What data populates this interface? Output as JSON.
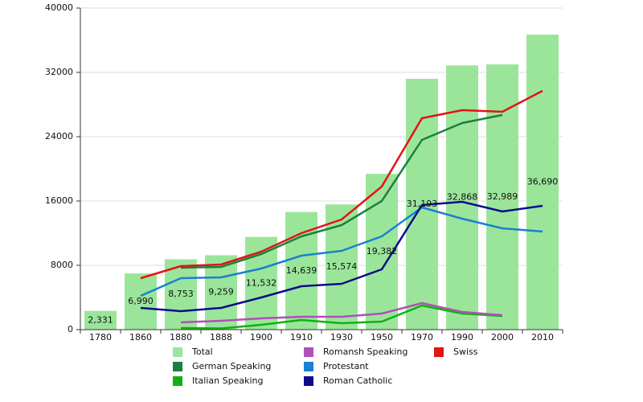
{
  "chart_data": {
    "type": "combo",
    "categories": [
      "1780",
      "1860",
      "1880",
      "1888",
      "1900",
      "1910",
      "1930",
      "1950",
      "1970",
      "1990",
      "2000",
      "2010"
    ],
    "ylim": [
      0,
      40000
    ],
    "yticks": [
      0,
      8000,
      16000,
      24000,
      32000,
      40000
    ],
    "grid": true,
    "legend": "bottom",
    "series": [
      {
        "name": "Total",
        "type": "bar",
        "color": "#9be59b",
        "values": [
          2331,
          6990,
          8753,
          9259,
          11532,
          14639,
          15574,
          19382,
          31193,
          32868,
          32989,
          36690
        ],
        "value_labels": [
          "2,331",
          "6,990",
          "8,753",
          "9,259",
          "11,532",
          "14,639",
          "15,574",
          "19,382",
          "31,193",
          "32,868",
          "32,989",
          "36,690"
        ]
      },
      {
        "name": "German Speaking",
        "type": "line",
        "color": "#1a8040",
        "values": [
          null,
          null,
          7700,
          7800,
          9400,
          11600,
          13000,
          16000,
          23600,
          25700,
          26700,
          null
        ]
      },
      {
        "name": "Italian Speaking",
        "type": "line",
        "color": "#12b012",
        "values": [
          null,
          null,
          200,
          150,
          600,
          1200,
          800,
          1000,
          3000,
          2000,
          1700,
          null
        ]
      },
      {
        "name": "Romansh Speaking",
        "type": "line",
        "color": "#b050b8",
        "values": [
          null,
          null,
          900,
          1100,
          1400,
          1600,
          1600,
          2000,
          3300,
          2200,
          1800,
          null
        ]
      },
      {
        "name": "Protestant",
        "type": "line",
        "color": "#1a80d0",
        "values": [
          null,
          4200,
          6400,
          6500,
          7600,
          9200,
          9800,
          11600,
          15200,
          13800,
          12600,
          12200
        ]
      },
      {
        "name": "Roman Catholic",
        "type": "line",
        "color": "#0c0c8a",
        "values": [
          null,
          2700,
          2300,
          2700,
          4000,
          5400,
          5700,
          7500,
          15500,
          15900,
          14700,
          15400
        ]
      },
      {
        "name": "Swiss",
        "type": "line",
        "color": "#e31414",
        "values": [
          null,
          6400,
          7900,
          8100,
          9700,
          12000,
          13700,
          17800,
          26300,
          27300,
          27100,
          29700
        ]
      }
    ]
  }
}
